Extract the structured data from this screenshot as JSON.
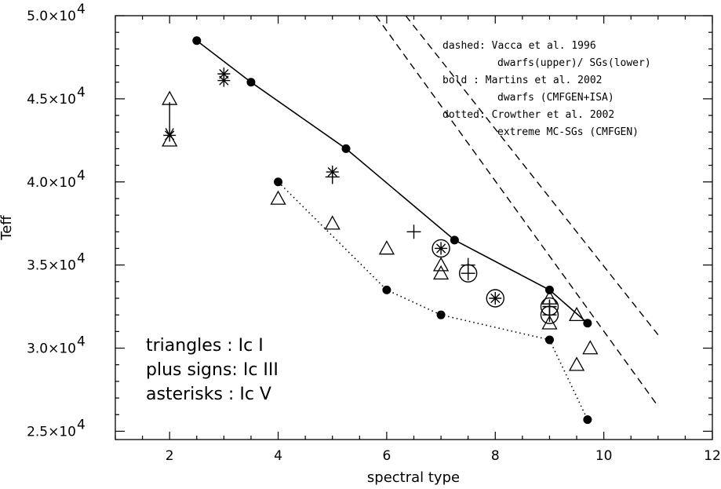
{
  "chart_data": {
    "type": "scatter",
    "xlabel": "spectral type",
    "ylabel": "Teff",
    "xlim": [
      1,
      12
    ],
    "ylim": [
      24500,
      50000
    ],
    "xticks": [
      "2",
      "4",
      "6",
      "8",
      "10",
      "12"
    ],
    "yticks": [
      {
        "value": 25000,
        "mant": "2.5×10",
        "exp": "4"
      },
      {
        "value": 30000,
        "mant": "3.0×10",
        "exp": "4"
      },
      {
        "value": 35000,
        "mant": "3.5×10",
        "exp": "4"
      },
      {
        "value": 40000,
        "mant": "4.0×10",
        "exp": "4"
      },
      {
        "value": 45000,
        "mant": "4.5×10",
        "exp": "4"
      },
      {
        "value": 50000,
        "mant": "5.0×10",
        "exp": "4"
      }
    ],
    "annotations": [
      "dashed: Vacca et al. 1996",
      "dwarfs(upper)/ SGs(lower)",
      "bold  : Martins et al. 2002",
      "dwarfs (CMFGEN+ISA)",
      "dotted: Crowther et al. 2002",
      "extreme MC-SGs (CMFGEN)"
    ],
    "legend_lines": [
      "triangles : Ic I",
      "plus signs: Ic III",
      "asterisks : Ic V"
    ],
    "series": [
      {
        "style": "dashed",
        "x": [
          6.35,
          11
        ],
        "y": [
          50000,
          30800
        ]
      },
      {
        "style": "dashed",
        "x": [
          5.8,
          11
        ],
        "y": [
          50000,
          26500
        ]
      },
      {
        "style": "bold",
        "x": [
          2.5,
          3.5,
          5.25,
          7.25,
          9,
          9.7
        ],
        "y": [
          48500,
          46000,
          42000,
          36500,
          33500,
          31500
        ]
      },
      {
        "style": "dotted",
        "x": [
          4,
          6,
          7,
          9,
          9.7
        ],
        "y": [
          40000,
          33500,
          32000,
          30500,
          25700
        ]
      }
    ],
    "triangles": [
      {
        "x": 2,
        "y": 45000
      },
      {
        "x": 2,
        "y": 42500
      },
      {
        "x": 4,
        "y": 39000
      },
      {
        "x": 5,
        "y": 37500
      },
      {
        "x": 6,
        "y": 36000
      },
      {
        "x": 7,
        "y": 35000
      },
      {
        "x": 7,
        "y": 34500
      },
      {
        "x": 9,
        "y": 33000
      },
      {
        "x": 9,
        "y": 31500
      },
      {
        "x": 9.5,
        "y": 32000
      },
      {
        "x": 9.5,
        "y": 29000
      },
      {
        "x": 9.75,
        "y": 30000
      }
    ],
    "plus_signs": [
      {
        "x": 5,
        "y": 40300
      },
      {
        "x": 6.5,
        "y": 37000
      },
      {
        "x": 7.5,
        "y": 35000
      },
      {
        "x": 9,
        "y": 32500
      }
    ],
    "asterisks": [
      {
        "x": 3,
        "y": 46500
      },
      {
        "x": 3,
        "y": 46100
      },
      {
        "x": 5,
        "y": 40600
      },
      {
        "x": 2,
        "y": 42800
      }
    ],
    "circled_plus": [
      {
        "x": 7.5,
        "y": 34500
      },
      {
        "x": 9,
        "y": 32500
      },
      {
        "x": 9,
        "y": 32000
      }
    ],
    "circled_asterisk": [
      {
        "x": 7,
        "y": 36000
      },
      {
        "x": 8,
        "y": 33000
      }
    ],
    "arrow": {
      "x": 2,
      "y_from": 44800,
      "y_to": 42800
    }
  }
}
